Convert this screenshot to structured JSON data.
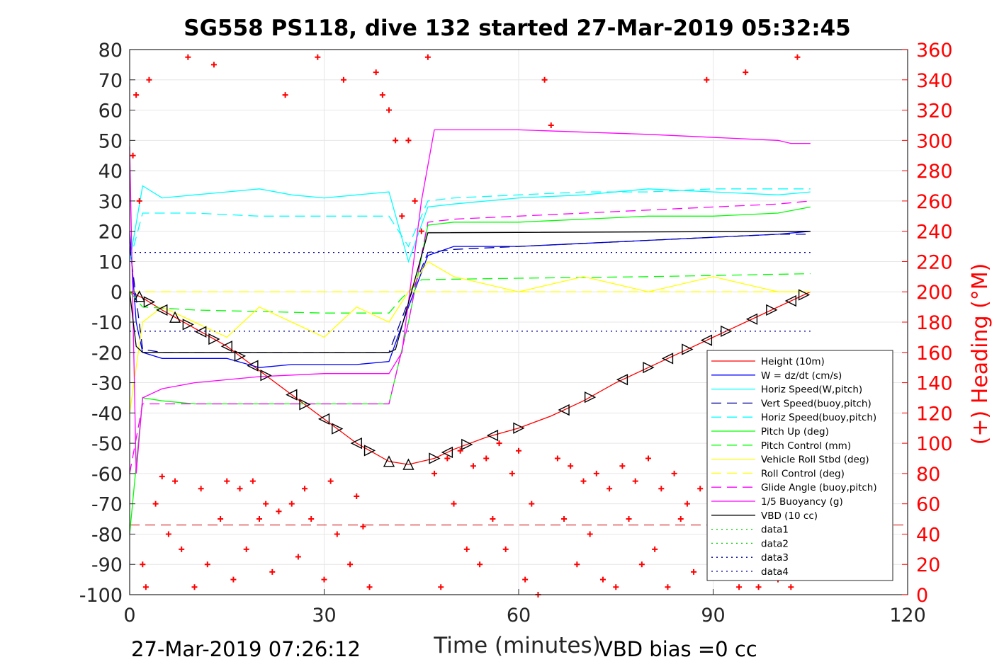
{
  "chart_data": {
    "type": "line",
    "title": "SG558 PS118, dive 132 started 27-Mar-2019 05:32:45",
    "xlabel": "Time (minutes)",
    "ylabel": "",
    "ylabel_right": "(+) Heading (°M)",
    "xlim": [
      0,
      120
    ],
    "ylim": [
      -100,
      80
    ],
    "ylim_right": [
      0,
      360
    ],
    "x_ticks": [
      0,
      30,
      60,
      90,
      120
    ],
    "y_ticks": [
      80,
      70,
      60,
      50,
      40,
      30,
      20,
      10,
      0,
      -10,
      -20,
      -30,
      -40,
      -50,
      -60,
      -70,
      -80,
      -90,
      -100
    ],
    "y_ticks_right": [
      360,
      340,
      320,
      300,
      280,
      260,
      240,
      220,
      200,
      180,
      160,
      140,
      120,
      100,
      80,
      60,
      40,
      20,
      0
    ],
    "grid": true,
    "legend_position": "bottom-right",
    "footer_left": "27-Mar-2019 07:26:12",
    "footer_right": "VBD bias =0 cc",
    "colors": {
      "red": "#ff0000",
      "blue": "#0000ff",
      "cyan": "#00ffff",
      "darkblue": "#000099",
      "green": "#00ff00",
      "yellow": "#ffff00",
      "magenta": "#ff00ff",
      "black": "#000000"
    },
    "series": [
      {
        "name": "Height (10m)",
        "color": "#ff0000",
        "style": "solid",
        "x": [
          0,
          2,
          5,
          10,
          15,
          20,
          25,
          30,
          35,
          40,
          43,
          47,
          50,
          55,
          60,
          65,
          70,
          75,
          80,
          85,
          90,
          95,
          100,
          105
        ],
        "y": [
          0,
          -2,
          -6,
          -12,
          -18,
          -26,
          -34,
          -42,
          -50,
          -56,
          -57,
          -55,
          -52,
          -48,
          -45,
          -41,
          -36,
          -30,
          -25,
          -20,
          -15,
          -10,
          -5,
          0
        ]
      },
      {
        "name": "W = dz/dt (cm/s)",
        "color": "#0000ff",
        "style": "solid",
        "x": [
          0,
          1,
          2,
          5,
          10,
          15,
          20,
          25,
          30,
          35,
          40,
          43,
          46,
          50,
          60,
          70,
          80,
          90,
          100,
          105
        ],
        "y": [
          20,
          -10,
          -20,
          -22,
          -22,
          -22,
          -25,
          -24,
          -24,
          -24,
          -23,
          -5,
          12,
          15,
          15,
          16,
          17,
          18,
          19,
          20
        ]
      },
      {
        "name": "Horiz Speed(W,pitch)",
        "color": "#00ffff",
        "style": "solid",
        "x": [
          0,
          2,
          5,
          10,
          15,
          20,
          25,
          30,
          35,
          40,
          43,
          46,
          50,
          60,
          70,
          80,
          90,
          100,
          105
        ],
        "y": [
          10,
          35,
          31,
          32,
          33,
          34,
          32,
          31,
          32,
          33,
          10,
          28,
          29,
          31,
          32,
          34,
          33,
          32,
          33
        ]
      },
      {
        "name": "Vert Speed(buoy,pitch)",
        "color": "#000099",
        "style": "dashed",
        "x": [
          0,
          2,
          5,
          10,
          20,
          30,
          40,
          43,
          46,
          50,
          60,
          70,
          80,
          90,
          100,
          105
        ],
        "y": [
          15,
          -19,
          -20,
          -20,
          -20,
          -20,
          -20,
          -3,
          13,
          14,
          15,
          16,
          17,
          18,
          19,
          19
        ]
      },
      {
        "name": "Horiz Speed(buoy,pitch)",
        "color": "#00ffff",
        "style": "dashed",
        "x": [
          0,
          2,
          5,
          10,
          20,
          30,
          40,
          43,
          46,
          50,
          60,
          70,
          80,
          90,
          100,
          105
        ],
        "y": [
          10,
          26,
          26,
          26,
          25,
          25,
          25,
          15,
          30,
          31,
          32,
          33,
          33,
          34,
          34,
          34
        ]
      },
      {
        "name": "Pitch Up (deg)",
        "color": "#00ff00",
        "style": "solid",
        "x": [
          0,
          2,
          5,
          10,
          20,
          30,
          40,
          43,
          46,
          50,
          60,
          70,
          80,
          90,
          100,
          105
        ],
        "y": [
          -80,
          -35,
          -36,
          -37,
          -37,
          -37,
          -37,
          -10,
          22,
          23,
          23,
          24,
          25,
          25,
          26,
          28
        ]
      },
      {
        "name": "Pitch Control (mm)",
        "color": "#00ff00",
        "style": "dashed",
        "x": [
          0,
          2,
          10,
          20,
          30,
          40,
          42,
          45,
          60,
          80,
          105
        ],
        "y": [
          0,
          -5,
          -6,
          -6.5,
          -7,
          -7,
          -2,
          4,
          4.5,
          5,
          6
        ]
      },
      {
        "name": "Vehicle Roll Stbd (deg)",
        "color": "#ffff00",
        "style": "solid",
        "x": [
          0,
          2,
          5,
          10,
          15,
          20,
          25,
          30,
          35,
          40,
          43,
          46,
          50,
          60,
          70,
          80,
          90,
          100,
          105
        ],
        "y": [
          -40,
          -10,
          -5,
          -10,
          -15,
          -5,
          -10,
          -15,
          -5,
          -10,
          0,
          10,
          5,
          0,
          5,
          0,
          5,
          0,
          0
        ]
      },
      {
        "name": "Roll Control (deg)",
        "color": "#ffff00",
        "style": "dashed",
        "x": [
          0,
          105
        ],
        "y": [
          0,
          0
        ]
      },
      {
        "name": "Glide Angle (buoy,pitch)",
        "color": "#ff00ff",
        "style": "dashed",
        "x": [
          0,
          2,
          10,
          20,
          30,
          40,
          43,
          46,
          50,
          60,
          70,
          80,
          90,
          100,
          105
        ],
        "y": [
          -60,
          -37,
          -37,
          -37,
          -37,
          -37,
          -10,
          23,
          24,
          25,
          26,
          27,
          28,
          29,
          30
        ]
      },
      {
        "name": "1/5 Buoyancy (g)",
        "color": "#ff00ff",
        "style": "solid",
        "x": [
          0,
          1,
          2,
          5,
          10,
          20,
          30,
          40,
          42,
          45,
          47,
          60,
          80,
          100,
          102,
          105
        ],
        "y": [
          48,
          -60,
          -35,
          -32,
          -30,
          -28,
          -27,
          -27,
          -20,
          30,
          53.5,
          53.5,
          52,
          50,
          49,
          49
        ]
      },
      {
        "name": "VBD (10 cc)",
        "color": "#000000",
        "style": "solid",
        "x": [
          0,
          1,
          2,
          40,
          41,
          46,
          105
        ],
        "y": [
          0,
          -18,
          -20,
          -20,
          -19,
          19.5,
          20
        ]
      },
      {
        "name": "data1",
        "color": "#00cc00",
        "style": "dotted",
        "x": [],
        "y": []
      },
      {
        "name": "data2",
        "color": "#00cc00",
        "style": "dotted",
        "x": [],
        "y": []
      },
      {
        "name": "data3",
        "color": "#000099",
        "style": "dotted",
        "x": [
          0,
          105
        ],
        "y": [
          13,
          13
        ]
      },
      {
        "name": "data4",
        "color": "#000099",
        "style": "dotted",
        "x": [
          0,
          105
        ],
        "y": [
          -13,
          -13
        ]
      }
    ],
    "reference_lines": [
      {
        "color": "#cc0000",
        "style": "dashed",
        "y": -77
      }
    ],
    "markers_height_triangles": [
      {
        "x": 1.5,
        "dir": "up"
      },
      {
        "x": 3,
        "dir": "right"
      },
      {
        "x": 5,
        "dir": "left"
      },
      {
        "x": 7,
        "dir": "up"
      },
      {
        "x": 9,
        "dir": "right"
      },
      {
        "x": 11,
        "dir": "left"
      },
      {
        "x": 13,
        "dir": "right"
      },
      {
        "x": 15,
        "dir": "left"
      },
      {
        "x": 17,
        "dir": "right"
      },
      {
        "x": 19,
        "dir": "left"
      },
      {
        "x": 21,
        "dir": "right"
      },
      {
        "x": 25,
        "dir": "left"
      },
      {
        "x": 27,
        "dir": "right"
      },
      {
        "x": 30,
        "dir": "left"
      },
      {
        "x": 32,
        "dir": "right"
      },
      {
        "x": 35,
        "dir": "left"
      },
      {
        "x": 37,
        "dir": "right"
      },
      {
        "x": 40,
        "dir": "up"
      },
      {
        "x": 43,
        "dir": "up"
      },
      {
        "x": 47,
        "dir": "right"
      },
      {
        "x": 49,
        "dir": "left"
      },
      {
        "x": 52,
        "dir": "right"
      },
      {
        "x": 56,
        "dir": "left"
      },
      {
        "x": 60,
        "dir": "right"
      },
      {
        "x": 67,
        "dir": "left"
      },
      {
        "x": 71,
        "dir": "right"
      },
      {
        "x": 76,
        "dir": "left"
      },
      {
        "x": 80,
        "dir": "right"
      },
      {
        "x": 83,
        "dir": "left"
      },
      {
        "x": 86,
        "dir": "right"
      },
      {
        "x": 89,
        "dir": "left"
      },
      {
        "x": 92,
        "dir": "right"
      },
      {
        "x": 96,
        "dir": "left"
      },
      {
        "x": 99,
        "dir": "right"
      },
      {
        "x": 102,
        "dir": "left"
      },
      {
        "x": 104,
        "dir": "right"
      }
    ],
    "heading_series": {
      "name": "(+) Heading (°M)",
      "axis": "right",
      "color": "#ff0000",
      "marker": "+",
      "x": [
        0.5,
        1,
        1.5,
        2,
        2.5,
        3,
        4,
        5,
        6,
        7,
        8,
        9,
        10,
        11,
        12,
        13,
        14,
        15,
        16,
        17,
        18,
        19,
        20,
        21,
        22,
        23,
        24,
        25,
        26,
        27,
        28,
        29,
        30,
        31,
        32,
        33,
        34,
        35,
        36,
        37,
        38,
        39,
        40,
        41,
        42,
        43,
        44,
        45,
        46,
        47,
        48,
        49,
        50,
        51,
        52,
        53,
        54,
        55,
        56,
        57,
        58,
        59,
        60,
        61,
        62,
        63,
        64,
        65,
        66,
        67,
        68,
        69,
        70,
        71,
        72,
        73,
        74,
        75,
        76,
        77,
        78,
        79,
        80,
        81,
        82,
        83,
        84,
        85,
        86,
        87,
        88,
        89,
        90,
        91,
        92,
        93,
        94,
        95,
        96,
        97,
        98,
        99,
        100,
        101,
        102,
        103,
        104
      ],
      "y": [
        290,
        330,
        260,
        20,
        5,
        340,
        60,
        78,
        40,
        75,
        30,
        355,
        5,
        70,
        20,
        350,
        50,
        75,
        10,
        70,
        30,
        75,
        50,
        60,
        15,
        55,
        330,
        60,
        25,
        70,
        50,
        355,
        10,
        75,
        40,
        340,
        20,
        65,
        45,
        5,
        345,
        330,
        320,
        300,
        250,
        300,
        260,
        240,
        355,
        80,
        5,
        90,
        60,
        95,
        30,
        85,
        20,
        90,
        50,
        100,
        30,
        80,
        95,
        10,
        60,
        0,
        340,
        310,
        90,
        50,
        85,
        20,
        75,
        40,
        80,
        10,
        70,
        5,
        85,
        50,
        75,
        20,
        90,
        30,
        70,
        5,
        80,
        50,
        60,
        15,
        70,
        340,
        30,
        60,
        20,
        50,
        5,
        345,
        30,
        5,
        20,
        40,
        10,
        35,
        5,
        355,
        20
      ]
    }
  }
}
